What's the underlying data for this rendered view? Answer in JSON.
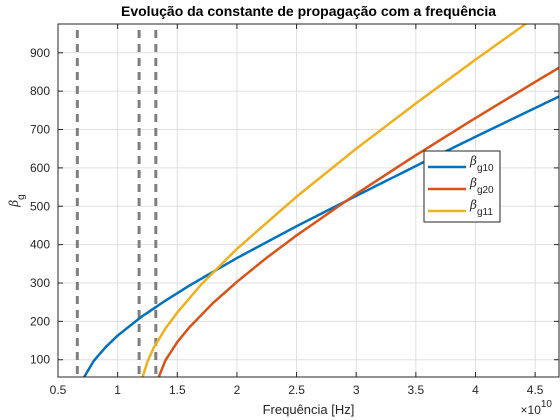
{
  "chart_data": {
    "type": "line",
    "title": "Evolução da constante de propagação com a frequência",
    "xlabel": "Frequência [Hz]",
    "ylabel_symbol": "β",
    "ylabel_subscript": "g",
    "x_multiplier_label": "×10",
    "x_multiplier_exponent": "10",
    "xlim": [
      0.5,
      4.7
    ],
    "ylim": [
      55,
      975
    ],
    "x_ticks": [
      0.5,
      1,
      1.5,
      2,
      2.5,
      3,
      3.5,
      4,
      4.5
    ],
    "x_tick_labels": [
      "0.5",
      "1",
      "1.5",
      "2",
      "2.5",
      "3",
      "3.5",
      "4",
      "4.5"
    ],
    "y_ticks": [
      100,
      200,
      300,
      400,
      500,
      600,
      700,
      800,
      900
    ],
    "y_tick_labels": [
      "100",
      "200",
      "300",
      "400",
      "500",
      "600",
      "700",
      "800",
      "900"
    ],
    "grid": true,
    "legend_position": "right",
    "cutoff_lines": [
      0.662,
      1.18,
      1.32
    ],
    "cutoff_color": "#7f7f7f",
    "series": [
      {
        "name_symbol": "β",
        "name_subscript": "g10",
        "color": "#0072bd",
        "x": [
          0.662,
          0.7,
          0.8,
          0.9,
          1.0,
          1.2,
          1.4,
          1.6,
          1.8,
          2.0,
          2.5,
          3.0,
          3.5,
          4.0,
          4.5,
          4.7
        ],
        "y": [
          0,
          45,
          97,
          133,
          163,
          212,
          254,
          293,
          329,
          365,
          448,
          527,
          605,
          681,
          756,
          786
        ]
      },
      {
        "name_symbol": "β",
        "name_subscript": "g20",
        "color": "#d95319",
        "x": [
          1.32,
          1.35,
          1.4,
          1.5,
          1.6,
          1.8,
          2.0,
          2.25,
          2.5,
          3.0,
          3.5,
          4.0,
          4.5,
          4.7
        ],
        "y": [
          0,
          59,
          98,
          146,
          184,
          248,
          303,
          366,
          424,
          532,
          633,
          730,
          824,
          861
        ]
      },
      {
        "name_symbol": "β",
        "name_subscript": "g11",
        "color": "#edb120",
        "x": [
          1.18,
          1.2,
          1.25,
          1.3,
          1.4,
          1.5,
          1.7,
          2.0,
          2.5,
          3.0,
          3.5,
          4.0,
          4.5,
          4.7
        ],
        "y": [
          0,
          46,
          95,
          130,
          181,
          223,
          296,
          389,
          525,
          650,
          768,
          882,
          993,
          1037
        ]
      }
    ]
  }
}
